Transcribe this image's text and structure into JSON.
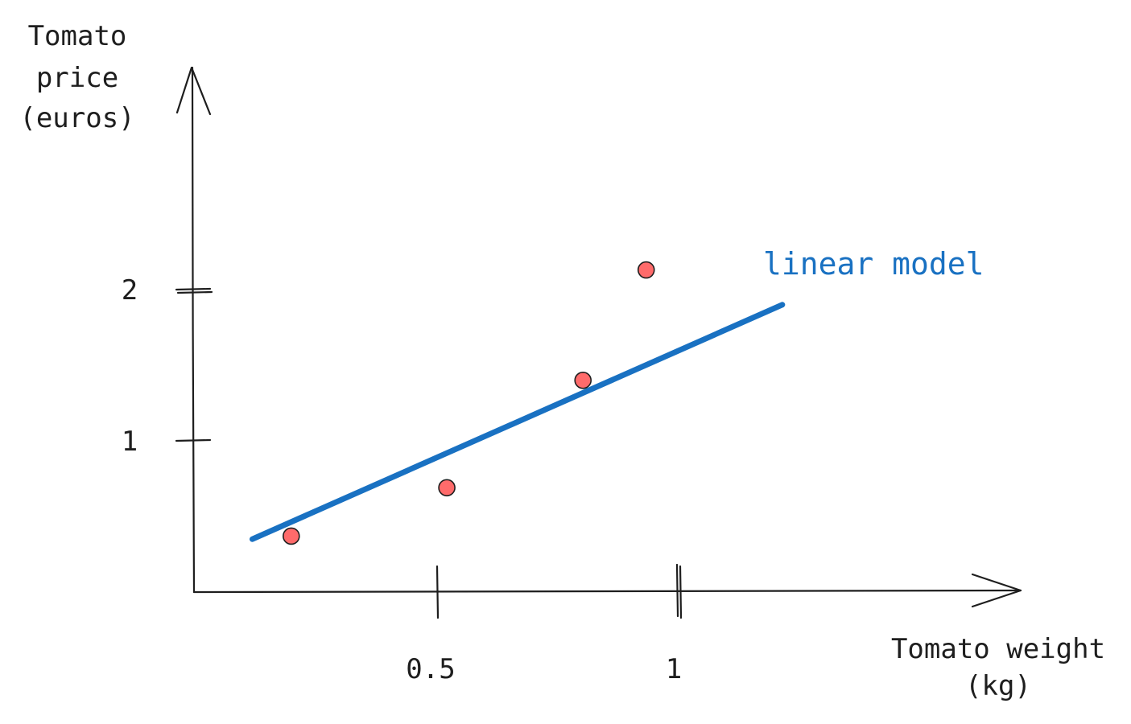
{
  "chart_data": {
    "type": "scatter",
    "title": "",
    "xlabel_lines": [
      "Tomato weight",
      "(kg)"
    ],
    "ylabel_lines": [
      "Tomato",
      "price",
      "(euros)"
    ],
    "x_ticks": [
      {
        "value": 0.5,
        "label": "0.5"
      },
      {
        "value": 1,
        "label": "1"
      }
    ],
    "y_ticks": [
      {
        "value": 1,
        "label": "1"
      },
      {
        "value": 2,
        "label": "2"
      }
    ],
    "xlim": [
      0,
      1.75
    ],
    "ylim": [
      0,
      3.4
    ],
    "grid": false,
    "points": [
      {
        "x": 0.2,
        "y": 0.37
      },
      {
        "x": 0.52,
        "y": 0.69
      },
      {
        "x": 0.8,
        "y": 1.4
      },
      {
        "x": 0.93,
        "y": 2.13
      }
    ],
    "model": {
      "label": "linear model",
      "color": "#1971c2",
      "x": [
        0.12,
        1.21
      ],
      "y": [
        0.35,
        1.9
      ]
    },
    "point_color": "#ff6b6b"
  }
}
